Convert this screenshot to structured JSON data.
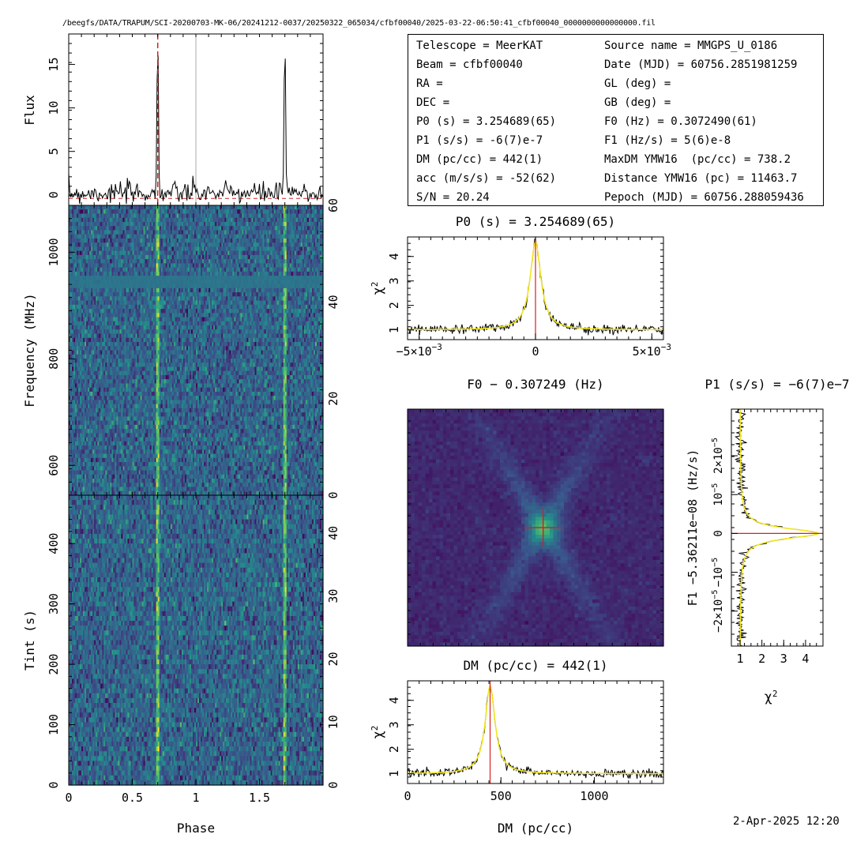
{
  "header": {
    "path": "/beegfs/DATA/TRAPUM/SCI-20200703-MK-06/20241212-0037/20250322_065034/cfbf00040/2025-03-22-06:50:41_cfbf00040_0000000000000000.fil",
    "timestamp": "2-Apr-2025 12:20"
  },
  "info_table": {
    "left": [
      {
        "label": "Telescope = MeerKAT"
      },
      {
        "label": "Beam = cfbf00040"
      },
      {
        "label": "RA ="
      },
      {
        "label": "DEC ="
      },
      {
        "label": "P0 (s) = 3.254689(65)"
      },
      {
        "label": "P1 (s/s) = -6(7)e-7"
      },
      {
        "label": "DM (pc/cc) = 442(1)"
      },
      {
        "label": "acc (m/s/s) = -52(62)"
      },
      {
        "label": "S/N = 20.24"
      }
    ],
    "right": [
      {
        "label": "Source name = MMGPS_U_0186"
      },
      {
        "label": "Date (MJD) = 60756.2851981259"
      },
      {
        "label": "GL (deg) ="
      },
      {
        "label": "GB (deg) ="
      },
      {
        "label": "F0 (Hz) = 0.3072490(61)"
      },
      {
        "label": "F1 (Hz/s) = 5(6)e-8"
      },
      {
        "label": "MaxDM YMW16  (pc/cc) = 738.2"
      },
      {
        "label": "Distance YMW16 (pc) = 11463.7"
      },
      {
        "label": "Pepoch (MJD) = 60756.288059436"
      }
    ]
  },
  "colors": {
    "heatmap_bg": "#3b5a8c",
    "heatmap_dark": "#44327a",
    "signal": "#b8e04a",
    "fit_line": "#f2e61a",
    "marker": "#d62020",
    "trace": "#000000"
  },
  "chart_data": [
    {
      "type": "line",
      "name": "profile",
      "ylabel": "Flux",
      "xlim": [
        0,
        2
      ],
      "ylim": [
        -1.2,
        18.5
      ],
      "yticks": [
        0,
        5,
        10,
        15
      ],
      "pulse_phase": [
        0.7,
        1.7
      ],
      "pulse_peak": 18,
      "noise_level": 0.6
    },
    {
      "type": "heatmap",
      "name": "freq-phase",
      "ylabel": "Frequency (MHz)",
      "xlim": [
        0,
        2
      ],
      "ylim": [
        544,
        1088
      ],
      "yticks": [
        600,
        800,
        1000
      ],
      "right_ticks": [
        0,
        20,
        40,
        60
      ],
      "rfi_band_mhz": 950,
      "signal_phase": [
        0.7,
        1.7
      ]
    },
    {
      "type": "heatmap",
      "name": "time-phase",
      "ylabel": "Tint (s)",
      "xlabel": "Phase",
      "xlim": [
        0,
        2
      ],
      "ylim": [
        0,
        480
      ],
      "yticks": [
        0,
        100,
        200,
        300,
        400
      ],
      "xticks": [
        "0",
        "0.5",
        "1",
        "1.5"
      ],
      "right_ticks": [
        0,
        10,
        20,
        30,
        40
      ],
      "signal_phase": [
        0.7,
        1.7
      ]
    },
    {
      "type": "line",
      "name": "p0-chi2",
      "title": "P0 (s) = 3.254689(65)",
      "ylabel": "χ2",
      "xlim": [
        -0.0055,
        0.0055
      ],
      "ylim": [
        0.6,
        4.8
      ],
      "xtick_labels": [
        "−5×10",
        "0",
        "5×10"
      ],
      "xtick_exp": "−3",
      "yticks": [
        1,
        2,
        3,
        4
      ],
      "peak_x": 0,
      "peak_y": 4.6,
      "baseline": 1.0
    },
    {
      "type": "heatmap",
      "name": "f0-f1",
      "title": "F0 − 0.307249 (Hz)"
    },
    {
      "type": "line",
      "name": "f1-chi2",
      "title": "P1 (s/s) = −6(7)e−7",
      "ylabel": "F1 −5.36211e−08 (Hz/s)",
      "xlabel": "χ2",
      "xticks": [
        1,
        2,
        3,
        4
      ],
      "ytick_labels": [
        "−2×10",
        "−10",
        "0",
        "10",
        "2×10"
      ],
      "ytick_exp": "−5",
      "peak_y": 0,
      "peak_x": 4.6,
      "baseline": 1.0
    },
    {
      "type": "line",
      "name": "dm-chi2",
      "title": "DM (pc/cc) = 442(1)",
      "ylabel": "χ2",
      "xlabel": "DM (pc/cc)",
      "xlim": [
        0,
        1370
      ],
      "ylim": [
        0.6,
        4.8
      ],
      "xticks": [
        0,
        500,
        1000
      ],
      "yticks": [
        1,
        2,
        3,
        4
      ],
      "peak_x": 442,
      "peak_y": 4.6,
      "baseline": 1.0
    }
  ]
}
